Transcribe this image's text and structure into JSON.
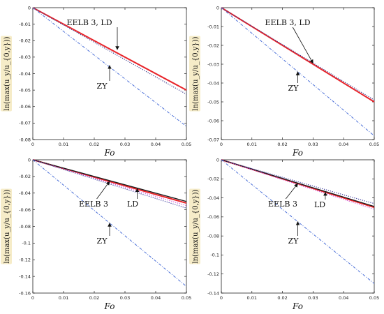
{
  "chart_data": [
    {
      "type": "line",
      "xlabel": "Fo",
      "ylabel": "ln(max(u_y/u_{0,y}))",
      "xlim": [
        0,
        0.05
      ],
      "ylim": [
        -0.08,
        0
      ],
      "xticks": [
        "0",
        "0.01",
        "0.02",
        "0.03",
        "0.04",
        "0.05"
      ],
      "yticks": [
        "0",
        "-0.01",
        "-0.02",
        "-0.03",
        "-0.04",
        "-0.05",
        "-0.06",
        "-0.07",
        "-0.08"
      ],
      "series": [
        {
          "name": "EELB 3",
          "x": [
            0,
            0.05
          ],
          "y": [
            0,
            -0.05
          ],
          "color": "#e8242a",
          "style": "solid"
        },
        {
          "name": "LD",
          "x": [
            0,
            0.05
          ],
          "y": [
            0,
            -0.0525
          ],
          "color": "#3a3a8c",
          "style": "dotted"
        },
        {
          "name": "ZY",
          "x": [
            0,
            0.05
          ],
          "y": [
            0,
            -0.072
          ],
          "color": "#4a6fd8",
          "style": "dashdot"
        }
      ],
      "annotations": [
        {
          "text": "EELB 3, LD",
          "x": 0.0275,
          "y": -0.0255
        },
        {
          "text": "ZY",
          "x": 0.025,
          "y": -0.035
        }
      ]
    },
    {
      "type": "line",
      "xlabel": "Fo",
      "ylabel": "ln(max(u_y/u_{0,y}))",
      "xlim": [
        0,
        0.05
      ],
      "ylim": [
        -0.07,
        0
      ],
      "xticks": [
        "0",
        "0.01",
        "0.02",
        "0.03",
        "0.04",
        "0.05"
      ],
      "yticks": [
        "0",
        "-0.01",
        "-0.02",
        "-0.03",
        "-0.04",
        "-0.05",
        "-0.06",
        "-0.07"
      ],
      "series": [
        {
          "name": "EELB 3",
          "x": [
            0,
            0.05
          ],
          "y": [
            0,
            -0.05
          ],
          "color": "#e8242a",
          "style": "solid"
        },
        {
          "name": "LD",
          "x": [
            0,
            0.05
          ],
          "y": [
            0,
            -0.049
          ],
          "color": "#3a3a8c",
          "style": "dotted"
        },
        {
          "name": "ZY",
          "x": [
            0,
            0.05
          ],
          "y": [
            0,
            -0.068
          ],
          "color": "#4a6fd8",
          "style": "dashdot"
        }
      ],
      "annotations": [
        {
          "text": "EELB 3, LD",
          "x": 0.03,
          "y": -0.0295
        },
        {
          "text": "ZY",
          "x": 0.025,
          "y": -0.034
        }
      ]
    },
    {
      "type": "line",
      "xlabel": "Fo",
      "ylabel": "ln(max(u_y/u_{0,y}))",
      "xlim": [
        0,
        0.05
      ],
      "ylim": [
        -0.16,
        0
      ],
      "xticks": [
        "0",
        "0.01",
        "0.02",
        "0.03",
        "0.04",
        "0.05"
      ],
      "yticks": [
        "0",
        "-0.02",
        "-0.04",
        "-0.06",
        "-0.08",
        "-0.1",
        "-0.12",
        "-0.14",
        "-0.16"
      ],
      "series": [
        {
          "name": "EELB 3",
          "x": [
            0,
            0.05
          ],
          "y": [
            0,
            -0.052
          ],
          "color": "#e8242a",
          "style": "solid"
        },
        {
          "name": "LD",
          "x": [
            0,
            0.05
          ],
          "y": [
            0,
            -0.05
          ],
          "color": "#1a1a1a",
          "style": "solid"
        },
        {
          "name": "magenta",
          "x": [
            0,
            0.05
          ],
          "y": [
            0,
            -0.055
          ],
          "color": "#d050d8",
          "style": "dotted"
        },
        {
          "name": "blue",
          "x": [
            0,
            0.05
          ],
          "y": [
            0,
            -0.058
          ],
          "color": "#3a3a9c",
          "style": "dotted"
        },
        {
          "name": "ZY",
          "x": [
            0,
            0.05
          ],
          "y": [
            0,
            -0.152
          ],
          "color": "#4a6fd8",
          "style": "dashdot"
        }
      ],
      "annotations": [
        {
          "text": "EELB 3",
          "x": 0.025,
          "y": -0.026
        },
        {
          "text": "LD",
          "x": 0.034,
          "y": -0.0345
        },
        {
          "text": "ZY",
          "x": 0.025,
          "y": -0.076
        }
      ]
    },
    {
      "type": "line",
      "xlabel": "Fo",
      "ylabel": "ln(max(u_y/u_{0,y}))",
      "xlim": [
        0,
        0.05
      ],
      "ylim": [
        -0.14,
        0
      ],
      "xticks": [
        "0",
        "0.01",
        "0.02",
        "0.03",
        "0.04",
        "0.05"
      ],
      "yticks": [
        "0",
        "-0.02",
        "-0.04",
        "-0.06",
        "-0.08",
        "-0.1",
        "-0.12",
        "-0.14"
      ],
      "series": [
        {
          "name": "EELB 3",
          "x": [
            0,
            0.05
          ],
          "y": [
            0,
            -0.05
          ],
          "color": "#e8242a",
          "style": "solid"
        },
        {
          "name": "LD",
          "x": [
            0,
            0.05
          ],
          "y": [
            0,
            -0.049
          ],
          "color": "#1a1a1a",
          "style": "solid"
        },
        {
          "name": "magenta",
          "x": [
            0,
            0.05
          ],
          "y": [
            0,
            -0.052
          ],
          "color": "#d050d8",
          "style": "dotted"
        },
        {
          "name": "blue",
          "x": [
            0,
            0.05
          ],
          "y": [
            0,
            -0.046
          ],
          "color": "#3a3a9c",
          "style": "dotted"
        },
        {
          "name": "ZY",
          "x": [
            0,
            0.05
          ],
          "y": [
            0,
            -0.13
          ],
          "color": "#4a6fd8",
          "style": "dashdot"
        }
      ],
      "annotations": [
        {
          "text": "EELB 3",
          "x": 0.025,
          "y": -0.025
        },
        {
          "text": "LD",
          "x": 0.034,
          "y": -0.034
        },
        {
          "text": "ZY",
          "x": 0.025,
          "y": -0.065
        }
      ]
    }
  ]
}
